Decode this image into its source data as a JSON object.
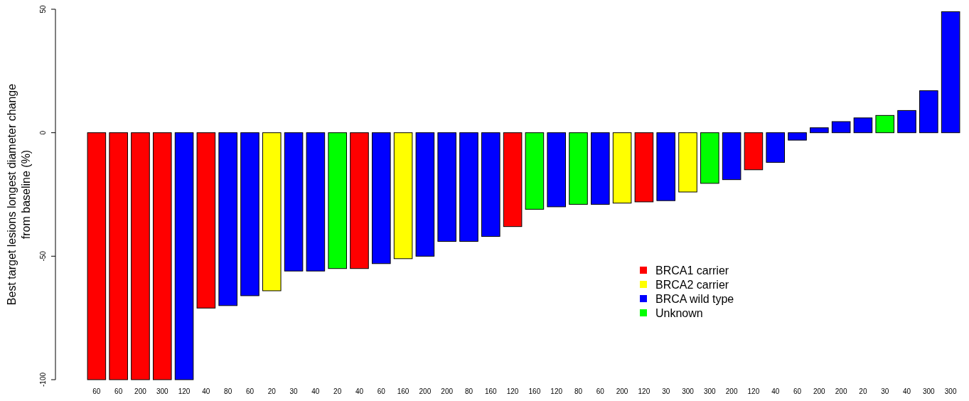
{
  "chart_data": {
    "type": "bar",
    "stacked": true,
    "ylabel": "Best target lesions longest diameter change\nfrom baseline (%)",
    "categories": [
      "60",
      "60",
      "200",
      "300",
      "120",
      "40",
      "80",
      "60",
      "20",
      "30",
      "40",
      "20",
      "40",
      "60",
      "160",
      "200",
      "200",
      "80",
      "160",
      "120",
      "160",
      "120",
      "80",
      "60",
      "200",
      "120",
      "30",
      "300",
      "300",
      "200",
      "120",
      "40",
      "60",
      "200",
      "200",
      "20",
      "30",
      "40",
      "300",
      "300"
    ],
    "series": [
      {
        "name": "BRCA1 carrier",
        "color": "#ff0000",
        "values": [
          -100,
          -100,
          -100,
          -100,
          null,
          -71,
          null,
          null,
          null,
          null,
          null,
          null,
          -55,
          null,
          null,
          null,
          null,
          null,
          null,
          -38,
          null,
          null,
          null,
          null,
          null,
          -28,
          null,
          null,
          null,
          null,
          -15,
          null,
          null,
          null,
          null,
          null,
          null,
          null,
          null,
          null
        ]
      },
      {
        "name": "BRCA2 carrier",
        "color": "#ffff00",
        "values": [
          null,
          null,
          null,
          null,
          null,
          null,
          null,
          null,
          -64,
          null,
          null,
          null,
          null,
          null,
          -51,
          null,
          null,
          null,
          null,
          null,
          null,
          null,
          null,
          null,
          -28.5,
          null,
          null,
          -24,
          null,
          null,
          null,
          null,
          null,
          null,
          null,
          null,
          null,
          null,
          null,
          null
        ]
      },
      {
        "name": "BRCA wild type",
        "color": "#0000ff",
        "values": [
          null,
          null,
          null,
          null,
          -100,
          null,
          -70,
          -66,
          null,
          -56,
          -56,
          null,
          null,
          -53,
          null,
          -50,
          -44,
          -44,
          -42,
          null,
          null,
          -30,
          null,
          -29,
          null,
          null,
          -27.5,
          null,
          null,
          -19,
          null,
          -12,
          -3,
          2,
          4.5,
          6,
          null,
          9,
          17,
          49
        ]
      },
      {
        "name": "Unknown",
        "color": "#00ff00",
        "values": [
          null,
          null,
          null,
          null,
          null,
          null,
          null,
          null,
          null,
          null,
          null,
          -55,
          null,
          null,
          null,
          null,
          null,
          null,
          null,
          null,
          -31,
          null,
          -29,
          null,
          null,
          null,
          null,
          null,
          -20.5,
          null,
          null,
          null,
          null,
          null,
          null,
          null,
          7,
          null,
          null,
          null
        ]
      }
    ],
    "ylim": [
      -100,
      50
    ],
    "yticks": [
      -100,
      -50,
      0,
      50
    ],
    "legend": "bottom right",
    "grid": false
  }
}
